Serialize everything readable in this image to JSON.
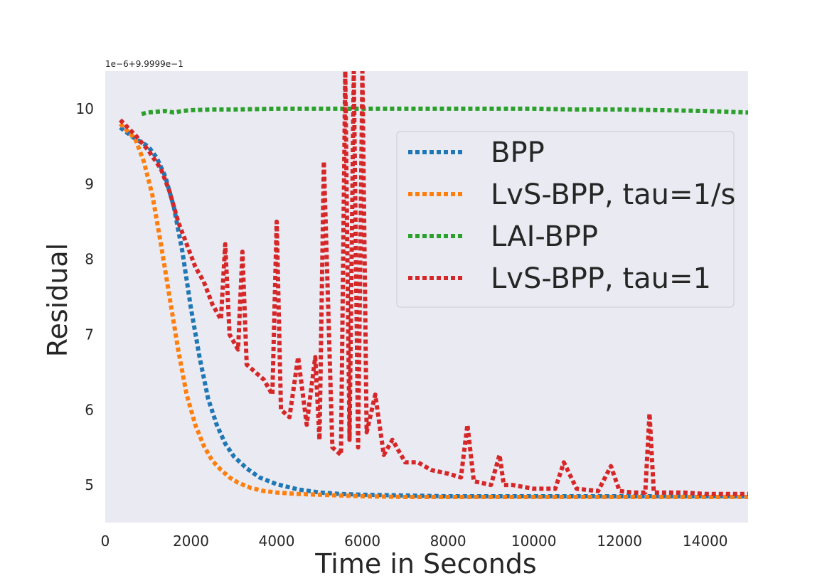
{
  "chart_data": {
    "type": "line",
    "title": "",
    "xlabel": "Time in Seconds",
    "ylabel": "Residual",
    "y_offset_text": "1e−6+9.9999e−1",
    "xlim": [
      0,
      15000
    ],
    "ylim": [
      4.5,
      10.5
    ],
    "xticks": [
      0,
      2000,
      4000,
      6000,
      8000,
      10000,
      12000,
      14000
    ],
    "yticks": [
      5,
      6,
      7,
      8,
      9,
      10
    ],
    "grid": false,
    "background": "#eaeaf2",
    "legend_position": "upper-right",
    "series": [
      {
        "name": "BPP",
        "color": "#1f77b4",
        "style": "dotted",
        "x": [
          350,
          700,
          1000,
          1200,
          1400,
          1600,
          1800,
          2000,
          2200,
          2400,
          2600,
          2800,
          3000,
          3300,
          3600,
          4000,
          4500,
          5000,
          5500,
          6000,
          7000,
          8000,
          9000,
          10000,
          11000,
          12000,
          13000,
          14000,
          15000
        ],
        "y": [
          9.75,
          9.6,
          9.5,
          9.35,
          9.1,
          8.7,
          8.1,
          7.35,
          6.7,
          6.15,
          5.8,
          5.55,
          5.38,
          5.22,
          5.1,
          5.01,
          4.94,
          4.9,
          4.88,
          4.87,
          4.86,
          4.85,
          4.85,
          4.85,
          4.85,
          4.85,
          4.85,
          4.85,
          4.85
        ]
      },
      {
        "name": "LvS-BPP, tau=1/s",
        "color": "#ff7f0e",
        "style": "dotted",
        "x": [
          350,
          700,
          900,
          1100,
          1300,
          1500,
          1700,
          1900,
          2100,
          2300,
          2500,
          2700,
          2900,
          3100,
          3400,
          3700,
          4000,
          4500,
          5000,
          5500,
          6000,
          7000,
          8000,
          9000,
          10000,
          11000,
          12000,
          13000,
          14000,
          15000
        ],
        "y": [
          9.8,
          9.6,
          9.3,
          8.85,
          8.2,
          7.5,
          6.8,
          6.2,
          5.8,
          5.52,
          5.32,
          5.2,
          5.1,
          5.03,
          4.96,
          4.92,
          4.9,
          4.88,
          4.87,
          4.86,
          4.85,
          4.84,
          4.84,
          4.84,
          4.84,
          4.84,
          4.84,
          4.84,
          4.84,
          4.84
        ]
      },
      {
        "name": "LAI-BPP",
        "color": "#2ca02c",
        "style": "dotted",
        "x": [
          850,
          1000,
          1200,
          1400,
          1600,
          1800,
          2000,
          2500,
          3000,
          4000,
          5000,
          6000,
          7000,
          8000,
          9000,
          10000,
          11000,
          12000,
          13000,
          14000,
          15000
        ],
        "y": [
          9.93,
          9.95,
          9.96,
          9.97,
          9.95,
          9.97,
          9.98,
          9.99,
          9.99,
          10.0,
          10.0,
          10.0,
          10.0,
          10.0,
          10.0,
          10.0,
          9.99,
          9.99,
          9.98,
          9.97,
          9.95
        ]
      },
      {
        "name": "LvS-BPP, tau=1",
        "color": "#d62728",
        "style": "dotted",
        "x": [
          350,
          700,
          1000,
          1300,
          1500,
          1700,
          1900,
          2100,
          2300,
          2500,
          2700,
          2800,
          2900,
          3100,
          3200,
          3300,
          3500,
          3700,
          3900,
          4000,
          4100,
          4300,
          4500,
          4700,
          4900,
          5000,
          5100,
          5300,
          5500,
          5600,
          5700,
          5800,
          5900,
          6000,
          6100,
          6300,
          6500,
          6700,
          7000,
          7300,
          7600,
          8000,
          8300,
          8450,
          8600,
          9000,
          9200,
          9300,
          9500,
          10000,
          10500,
          10700,
          11000,
          11500,
          11800,
          12000,
          12300,
          12600,
          12700,
          12800,
          13000,
          13500,
          14000,
          14500,
          15000
        ],
        "y": [
          9.85,
          9.65,
          9.45,
          9.2,
          8.9,
          8.5,
          8.2,
          7.9,
          7.7,
          7.4,
          7.2,
          8.2,
          7.0,
          6.8,
          8.1,
          6.6,
          6.5,
          6.4,
          6.2,
          8.5,
          6.0,
          5.9,
          6.7,
          5.8,
          6.7,
          5.6,
          9.3,
          5.5,
          5.4,
          10.5,
          5.6,
          10.5,
          5.5,
          10.5,
          5.7,
          6.2,
          5.4,
          5.6,
          5.3,
          5.3,
          5.2,
          5.15,
          5.1,
          5.8,
          5.05,
          5.0,
          5.4,
          5.0,
          5.0,
          4.95,
          4.95,
          5.3,
          4.95,
          4.92,
          5.25,
          4.92,
          4.9,
          4.9,
          5.95,
          4.9,
          4.9,
          4.9,
          4.88,
          4.88,
          4.88
        ]
      }
    ]
  }
}
